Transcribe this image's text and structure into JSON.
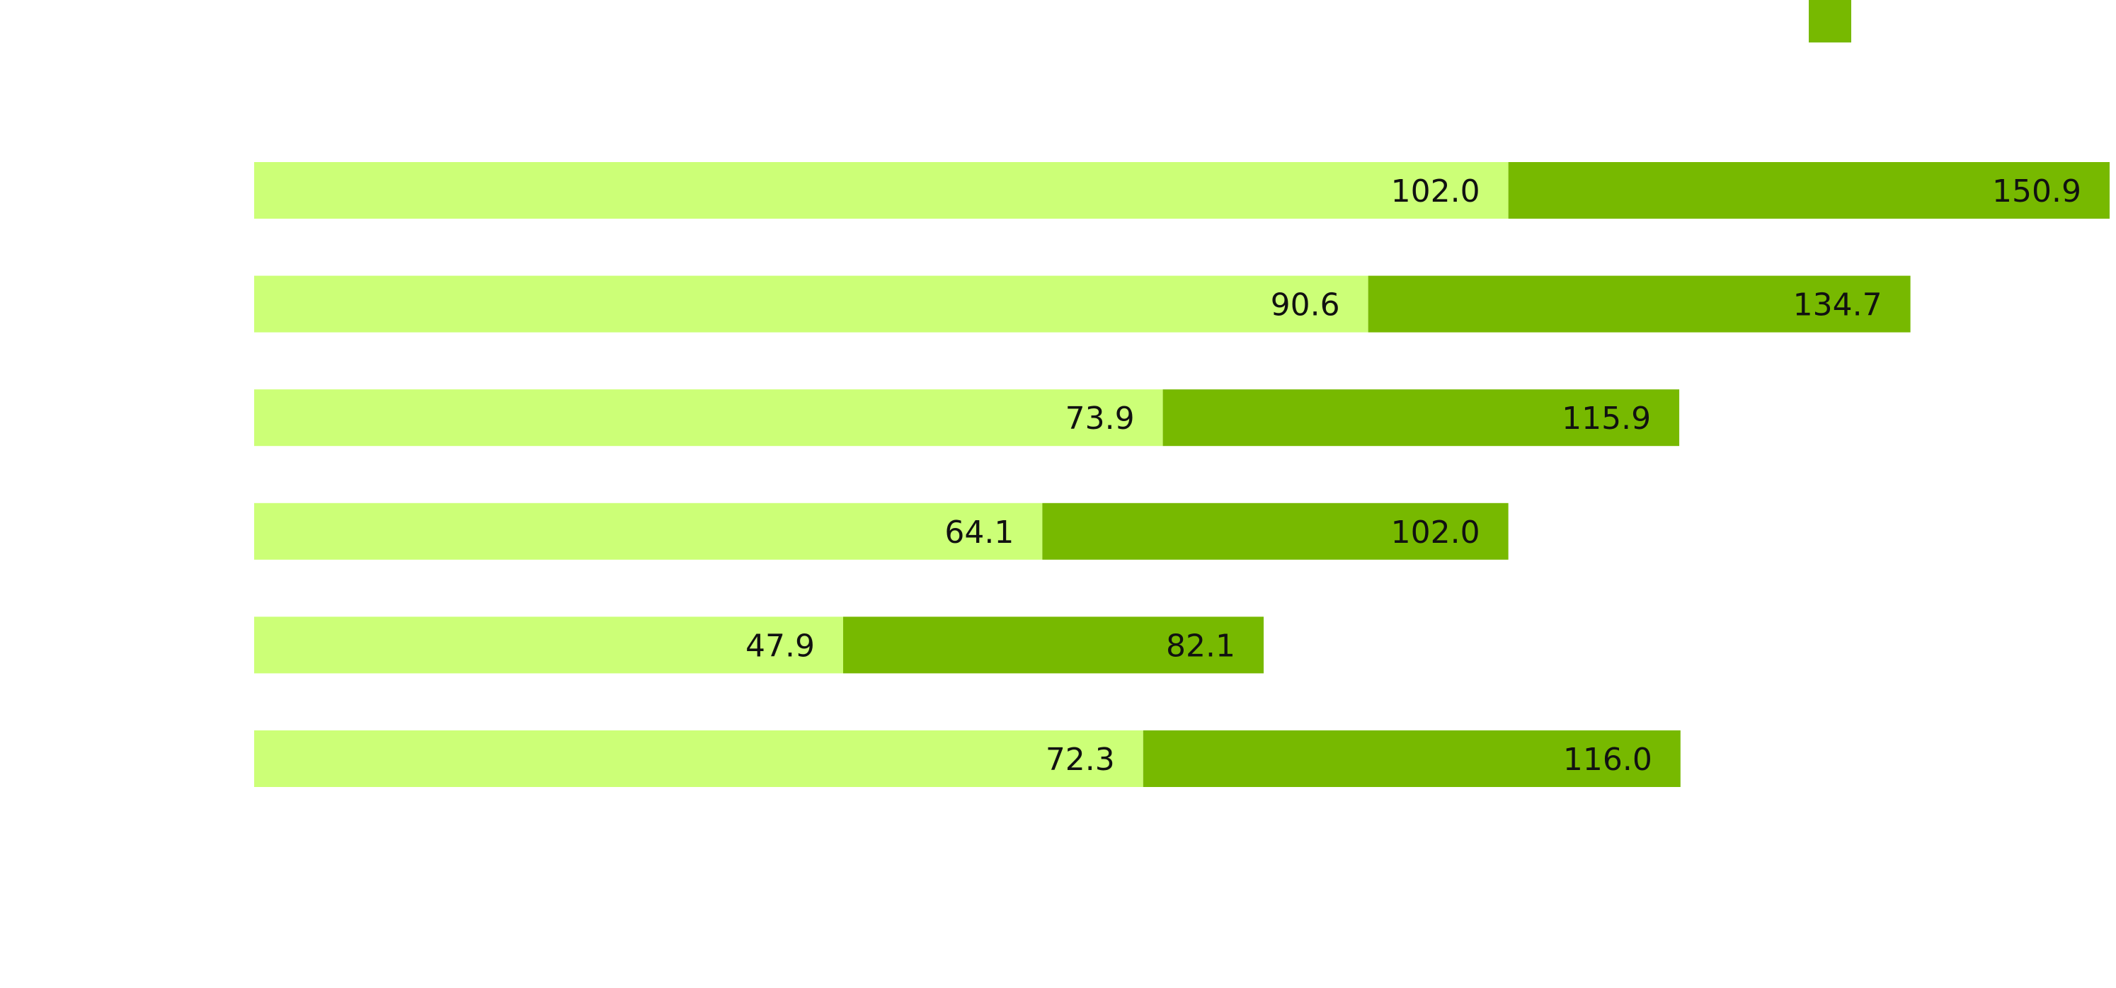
{
  "chart_data": {
    "type": "bar",
    "orientation": "horizontal",
    "stacked": true,
    "title": "",
    "xlabel": "",
    "ylabel": "",
    "categories": [
      "",
      "",
      "",
      "",
      "",
      ""
    ],
    "series": [
      {
        "color": "#ccff77",
        "values": [
          102.0,
          90.6,
          73.9,
          64.1,
          47.9,
          72.3
        ],
        "labels": [
          "102.0",
          "90.6",
          "73.9",
          "64.1",
          "47.9",
          "72.3"
        ]
      },
      {
        "color": "#77b900",
        "values": [
          48.9,
          44.1,
          42.0,
          37.9,
          34.2,
          43.7
        ],
        "labels": [
          "150.9",
          "134.7",
          "115.9",
          "102.0",
          "82.1",
          "116.0"
        ]
      }
    ],
    "label_position": "inside-end",
    "xlim": [
      0,
      150.9
    ],
    "grid": false,
    "legend": {
      "position": "top-right",
      "color": "#77b900"
    }
  }
}
